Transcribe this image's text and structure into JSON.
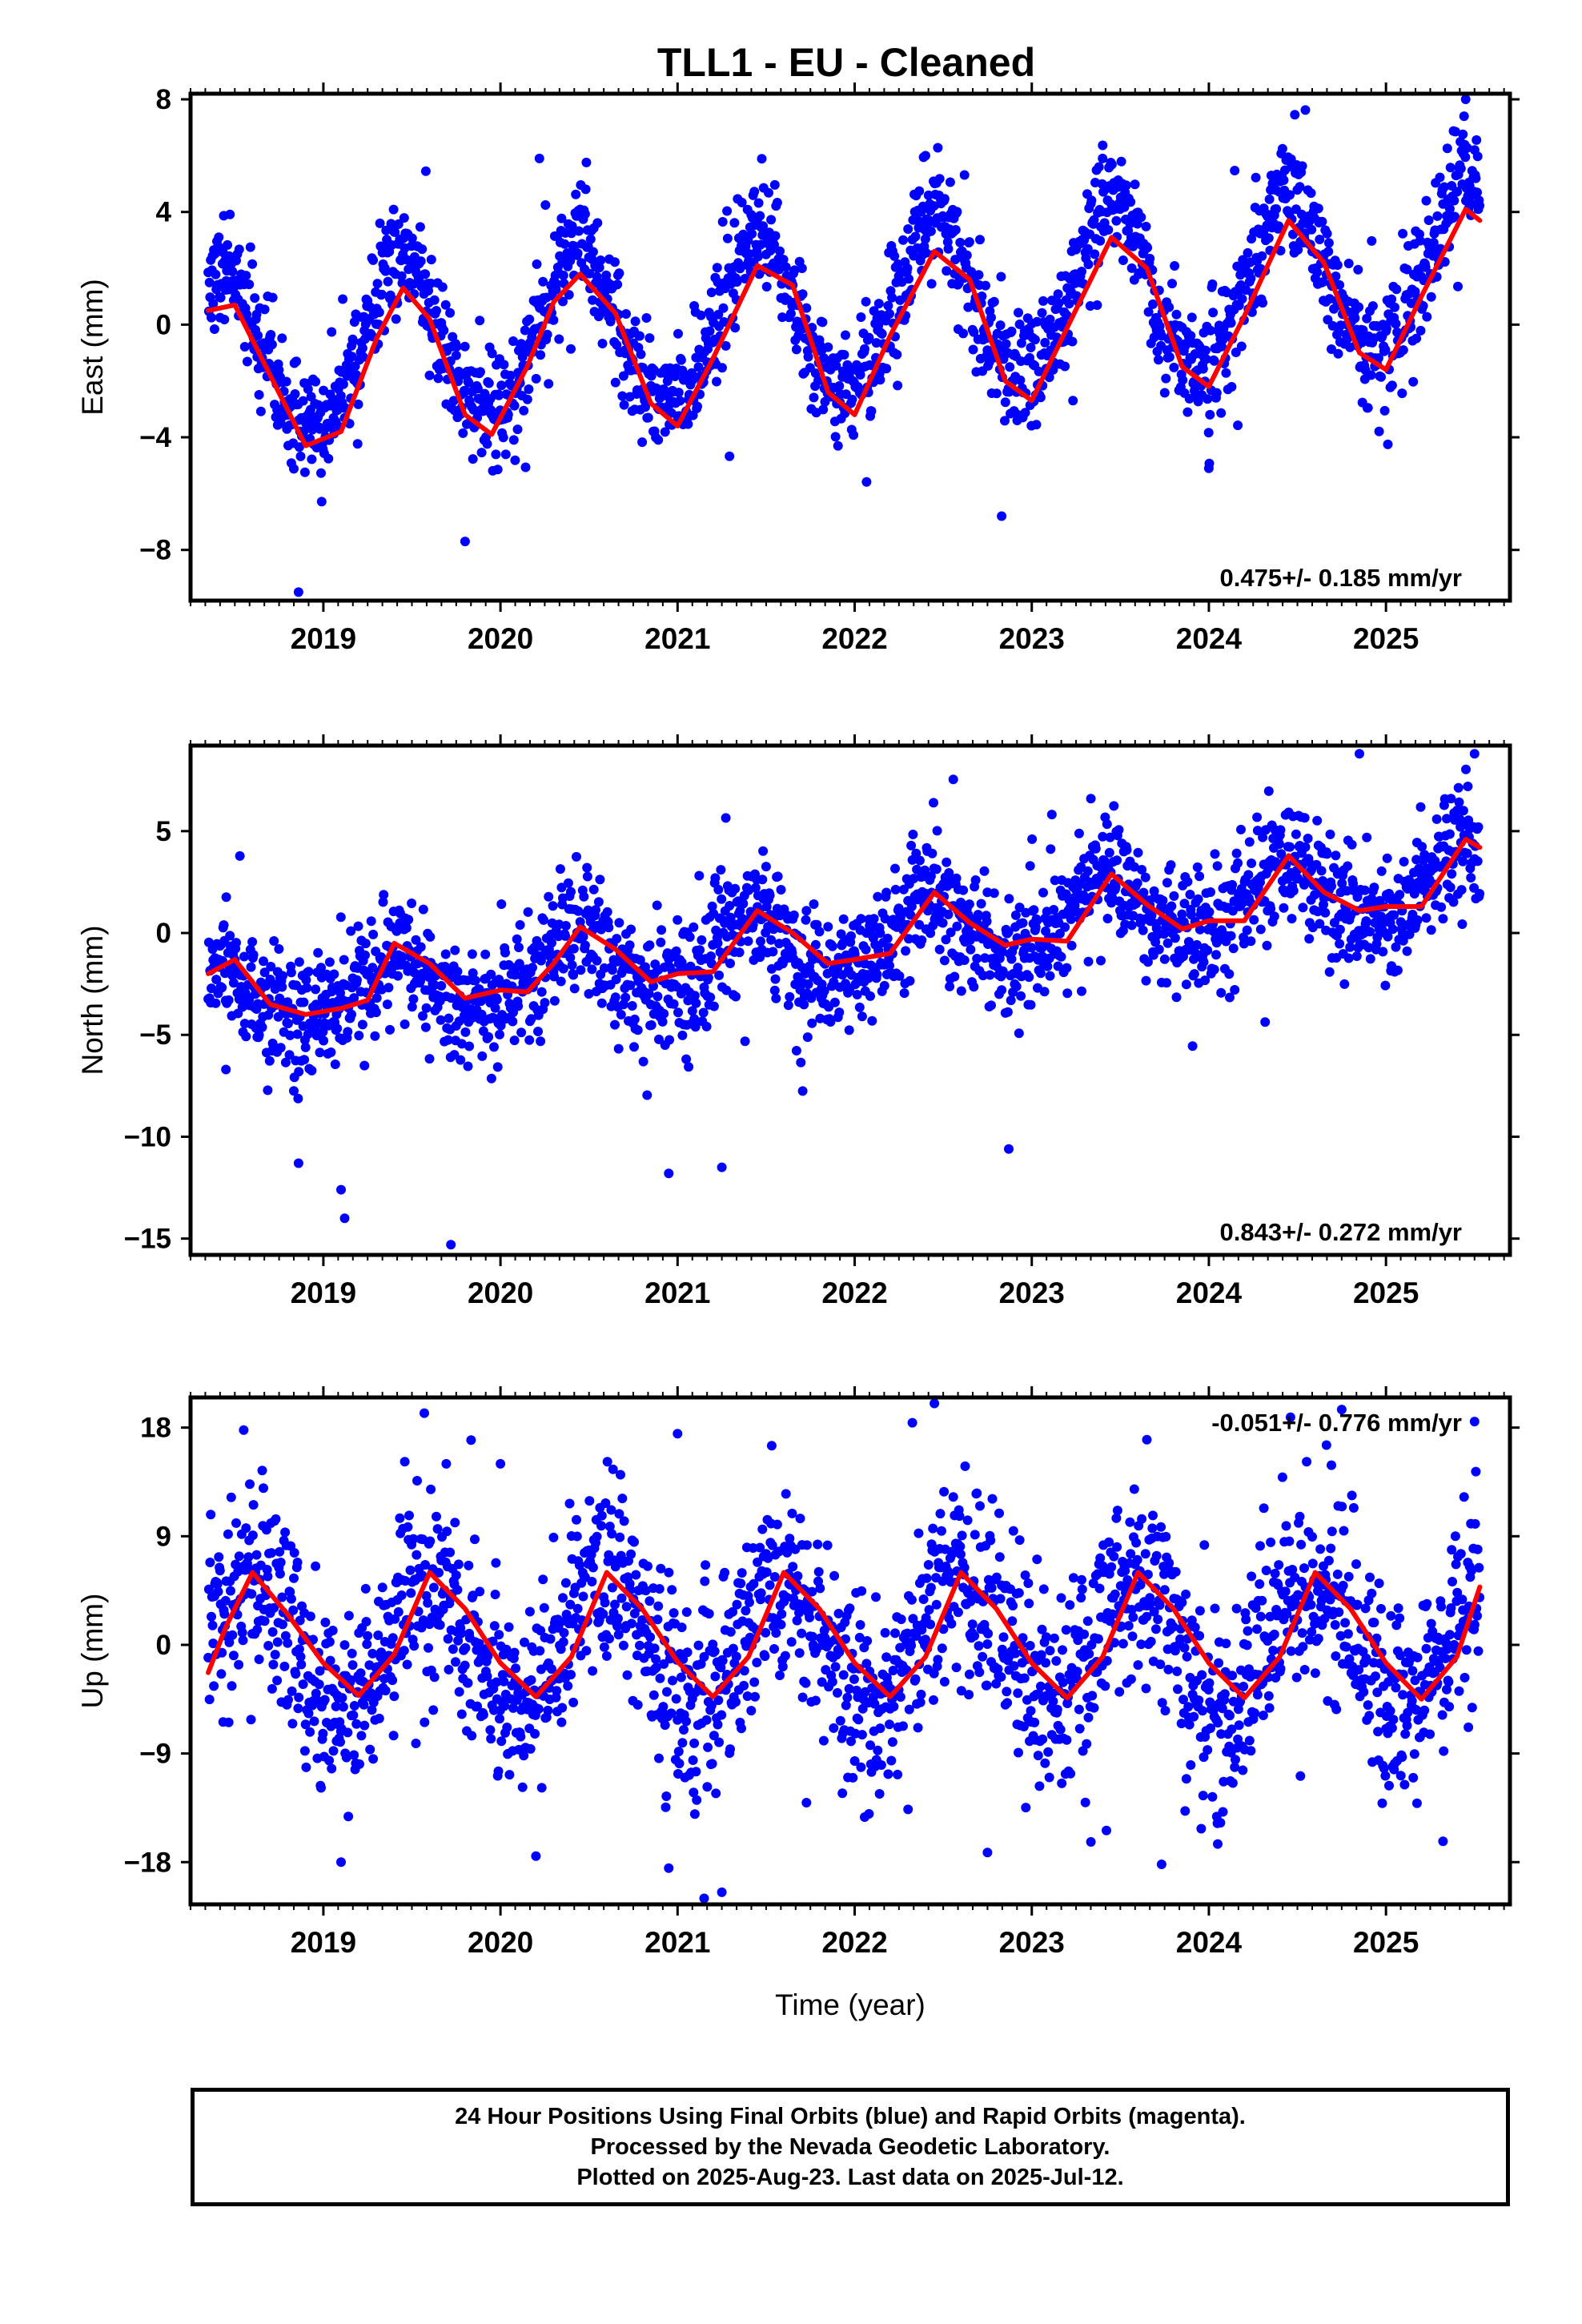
{
  "title": "TLL1  - EU - Cleaned",
  "colors": {
    "data_points": "#0000ff",
    "fit_curve": "#ff0000",
    "axes": "#000000"
  },
  "footer": {
    "line1": "24 Hour Positions Using Final Orbits (blue) and Rapid Orbits (magenta).",
    "line2": "Processed by the Nevada Geodetic Laboratory.",
    "line3": "Plotted on 2025-Aug-23. Last data on 2025-Jul-12."
  },
  "chart_data": [
    {
      "type": "scatter",
      "panel": "east",
      "title": "",
      "xlabel": "",
      "ylabel": "East (mm)",
      "rate_label": "0.475+/- 0.185 mm/yr",
      "rate_position": "bottom-right",
      "xlim": [
        2018.25,
        2025.7
      ],
      "ylim": [
        -9.8,
        8.2
      ],
      "yticks": [
        -8,
        -4,
        0,
        4,
        8
      ],
      "ytick_labels": [
        "−8",
        "−4",
        "0",
        "4",
        "8"
      ],
      "xticks": [
        2019,
        2020,
        2021,
        2022,
        2023,
        2024,
        2025
      ],
      "xtick_labels": [
        "2019",
        "2020",
        "2021",
        "2022",
        "2023",
        "2024",
        "2025"
      ],
      "data_span": [
        2018.35,
        2025.53
      ],
      "trend": {
        "rate_mm_per_yr": 0.475,
        "offset_mm": -1.3,
        "ref_year": 2018.35
      },
      "seasonal": {
        "amplitude_mm": 2.9,
        "peak_phase_year_fraction": 0.44,
        "semiannual_mm": 0.35
      },
      "scatter_sigma_mm": 1.0,
      "fit_curve": {
        "x": [
          2018.35,
          2018.5,
          2018.7,
          2018.9,
          2019.1,
          2019.3,
          2019.45,
          2019.6,
          2019.8,
          2019.95,
          2020.15,
          2020.3,
          2020.45,
          2020.65,
          2020.85,
          2021.0,
          2021.2,
          2021.45,
          2021.65,
          2021.85,
          2022.0,
          2022.2,
          2022.45,
          2022.65,
          2022.85,
          2023.0,
          2023.2,
          2023.45,
          2023.65,
          2023.85,
          2024.0,
          2024.2,
          2024.45,
          2024.65,
          2024.85,
          2025.0,
          2025.2,
          2025.45,
          2025.53
        ],
        "y": [
          0.5,
          0.7,
          -1.8,
          -4.3,
          -3.8,
          -0.5,
          1.3,
          0.2,
          -3.2,
          -3.9,
          -1.5,
          0.8,
          1.8,
          0.4,
          -2.8,
          -3.6,
          -1.2,
          2.1,
          1.4,
          -2.4,
          -3.2,
          -0.4,
          2.6,
          1.6,
          -2.0,
          -2.7,
          -0.1,
          3.1,
          2.0,
          -1.5,
          -2.2,
          0.3,
          3.7,
          2.2,
          -1.0,
          -1.6,
          1.0,
          4.1,
          3.7
        ]
      },
      "outliers": [
        [
          2018.86,
          -9.5
        ],
        [
          2020.22,
          5.9
        ],
        [
          2022.4,
          6.0
        ],
        [
          2023.4,
          5.9
        ],
        [
          2022.83,
          -6.8
        ],
        [
          2025.45,
          8.0
        ],
        [
          2019.8,
          -7.7
        ],
        [
          2024.0,
          -5.1
        ]
      ]
    },
    {
      "type": "scatter",
      "panel": "north",
      "title": "",
      "xlabel": "",
      "ylabel": "North (mm)",
      "rate_label": "0.843+/- 0.272 mm/yr",
      "rate_position": "bottom-right",
      "xlim": [
        2018.25,
        2025.7
      ],
      "ylim": [
        -15.8,
        9.2
      ],
      "yticks": [
        -15,
        -10,
        -5,
        0,
        5
      ],
      "ytick_labels": [
        "−15",
        "−10",
        "−5",
        "0",
        "5"
      ],
      "xticks": [
        2019,
        2020,
        2021,
        2022,
        2023,
        2024,
        2025
      ],
      "xtick_labels": [
        "2019",
        "2020",
        "2021",
        "2022",
        "2023",
        "2024",
        "2025"
      ],
      "data_span": [
        2018.35,
        2025.53
      ],
      "trend": {
        "rate_mm_per_yr": 0.843,
        "offset_mm": -3.5,
        "ref_year": 2018.35
      },
      "seasonal": {
        "amplitude_mm": 1.6,
        "peak_phase_year_fraction": 0.42,
        "semiannual_mm": 0.3
      },
      "scatter_sigma_mm": 1.5,
      "fit_curve": {
        "x": [
          2018.35,
          2018.5,
          2018.7,
          2018.9,
          2019.1,
          2019.25,
          2019.4,
          2019.6,
          2019.8,
          2020.0,
          2020.15,
          2020.3,
          2020.45,
          2020.65,
          2020.85,
          2021.0,
          2021.2,
          2021.45,
          2021.65,
          2021.85,
          2022.0,
          2022.2,
          2022.45,
          2022.65,
          2022.85,
          2023.0,
          2023.2,
          2023.45,
          2023.65,
          2023.85,
          2024.0,
          2024.2,
          2024.45,
          2024.65,
          2024.85,
          2025.0,
          2025.2,
          2025.45,
          2025.53
        ],
        "y": [
          -2.0,
          -1.3,
          -3.5,
          -4.0,
          -3.7,
          -3.3,
          -0.5,
          -1.5,
          -3.2,
          -2.8,
          -2.9,
          -1.5,
          0.3,
          -0.8,
          -2.4,
          -2.0,
          -1.9,
          1.1,
          0.0,
          -1.5,
          -1.3,
          -1.0,
          2.0,
          0.5,
          -0.6,
          -0.3,
          -0.4,
          2.9,
          1.4,
          0.2,
          0.6,
          0.6,
          3.8,
          2.0,
          1.1,
          1.3,
          1.3,
          4.6,
          4.2
        ]
      },
      "outliers": [
        [
          2019.12,
          -14.0
        ],
        [
          2019.72,
          -15.3
        ],
        [
          2018.86,
          -11.3
        ],
        [
          2019.1,
          -12.6
        ],
        [
          2020.95,
          -11.8
        ],
        [
          2021.25,
          -11.5
        ],
        [
          2018.45,
          -6.7
        ],
        [
          2025.5,
          8.8
        ],
        [
          2024.85,
          8.8
        ],
        [
          2022.87,
          -10.6
        ]
      ]
    },
    {
      "type": "scatter",
      "panel": "up",
      "title": "",
      "xlabel": "Time (year)",
      "ylabel": "Up (mm)",
      "rate_label": "-0.051+/- 0.776 mm/yr",
      "rate_position": "top-right",
      "xlim": [
        2018.25,
        2025.7
      ],
      "ylim": [
        -21.5,
        20.5
      ],
      "yticks": [
        -18,
        -9,
        0,
        9,
        18
      ],
      "ytick_labels": [
        "−18",
        "−9",
        "0",
        "9",
        "18"
      ],
      "xticks": [
        2019,
        2020,
        2021,
        2022,
        2023,
        2024,
        2025
      ],
      "xtick_labels": [
        "2019",
        "2020",
        "2021",
        "2022",
        "2023",
        "2024",
        "2025"
      ],
      "data_span": [
        2018.35,
        2025.53
      ],
      "trend": {
        "rate_mm_per_yr": -0.051,
        "offset_mm": 0.5,
        "ref_year": 2018.35
      },
      "seasonal": {
        "amplitude_mm": 5.3,
        "peak_phase_year_fraction": 0.6,
        "semiannual_mm": 0.0
      },
      "scatter_sigma_mm": 4.0,
      "fit_curve": {
        "x": [
          2018.35,
          2018.45,
          2018.6,
          2018.8,
          2019.0,
          2019.2,
          2019.4,
          2019.6,
          2019.8,
          2020.0,
          2020.2,
          2020.4,
          2020.6,
          2020.8,
          2021.0,
          2021.2,
          2021.4,
          2021.6,
          2021.8,
          2022.0,
          2022.2,
          2022.4,
          2022.6,
          2022.8,
          2023.0,
          2023.2,
          2023.4,
          2023.6,
          2023.8,
          2024.0,
          2024.2,
          2024.4,
          2024.6,
          2024.8,
          2025.0,
          2025.2,
          2025.4,
          2025.53
        ],
        "y": [
          -2.3,
          1.5,
          6.0,
          2.5,
          -1.5,
          -4.2,
          -0.8,
          6.0,
          3.0,
          -1.5,
          -4.3,
          -1.0,
          6.0,
          3.0,
          -1.4,
          -4.3,
          -1.0,
          6.0,
          3.0,
          -1.5,
          -4.3,
          -1.0,
          6.0,
          3.0,
          -1.5,
          -4.4,
          -1.0,
          6.0,
          3.0,
          -1.5,
          -4.4,
          -1.0,
          6.0,
          3.0,
          -1.5,
          -4.5,
          -1.0,
          4.8
        ]
      },
      "outliers": [
        [
          2018.55,
          17.8
        ],
        [
          2019.57,
          19.2
        ],
        [
          2020.0,
          15.0
        ],
        [
          2020.2,
          -17.5
        ],
        [
          2021.0,
          17.5
        ],
        [
          2021.15,
          -21.0
        ],
        [
          2021.25,
          -20.5
        ],
        [
          2020.95,
          -18.5
        ],
        [
          2022.45,
          20.0
        ],
        [
          2023.65,
          17.0
        ],
        [
          2024.75,
          19.5
        ],
        [
          2025.5,
          18.5
        ],
        [
          2019.1,
          -18.0
        ],
        [
          2022.75,
          -17.2
        ],
        [
          2024.05,
          -16.5
        ]
      ]
    }
  ]
}
